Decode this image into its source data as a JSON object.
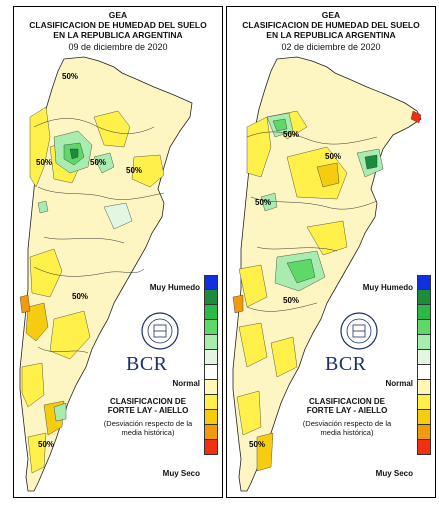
{
  "panels": [
    {
      "title1": "GEA",
      "title2": "CLASIFICACION DE HUMEDAD DEL SUELO",
      "title3": "EN LA REPUBLICA ARGENTINA",
      "date": "09 de diciembre de 2020",
      "contour_labels": [
        "50%",
        "50%",
        "50%",
        "50%",
        "50%",
        "50%"
      ]
    },
    {
      "title1": "GEA",
      "title2": "CLASIFICACION DE HUMEDAD DEL SUELO",
      "title3": "EN LA REPUBLICA ARGENTINA",
      "date": "02 de diciembre de 2020",
      "contour_labels": [
        "50%",
        "50%",
        "50%",
        "50%",
        "50%"
      ]
    }
  ],
  "legend": {
    "muy_humedo": "Muy Humedo",
    "normal": "Normal",
    "muy_seco": "Muy Seco",
    "colors": [
      "#1030e0",
      "#1a8c3a",
      "#2fb84a",
      "#5fd86a",
      "#a8ecb0",
      "#e2f6e2",
      "#ffffff",
      "#fff6b8",
      "#fff04a",
      "#f5cc10",
      "#f09a10",
      "#f03010"
    ]
  },
  "brand": {
    "logo_text": "BCR",
    "seal_text": "BOLSA DE COMERCIO DE ROSARIO"
  },
  "classification": {
    "title": "CLASIFICACION DE FORTE LAY - AIELLO",
    "subtitle": "(Desviación respecto de la media histórica)"
  }
}
